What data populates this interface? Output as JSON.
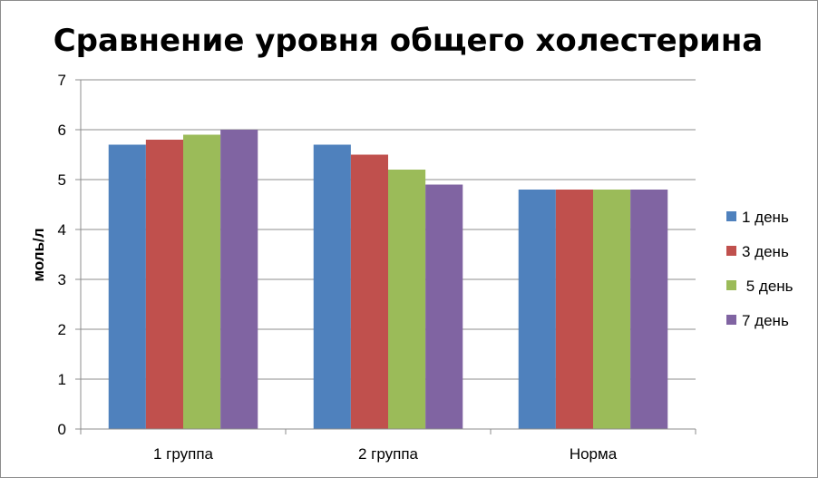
{
  "chart_data": {
    "type": "bar",
    "title": "Сравнение уровня общего холестерина",
    "xlabel": "",
    "ylabel": "моль/л",
    "ylim": [
      0,
      7
    ],
    "yticks": [
      0,
      1,
      2,
      3,
      4,
      5,
      6,
      7
    ],
    "grid": true,
    "legend_position": "right",
    "categories": [
      "1 группа",
      "2 группа",
      "Норма"
    ],
    "series": [
      {
        "name": "1 день",
        "color": "#4F81BD",
        "values": [
          5.7,
          5.7,
          4.8
        ]
      },
      {
        "name": "3 день",
        "color": "#C0504D",
        "values": [
          5.8,
          5.5,
          4.8
        ]
      },
      {
        "name": " 5 день",
        "color": "#9BBB59",
        "values": [
          5.9,
          5.2,
          4.8
        ]
      },
      {
        "name": "7 день",
        "color": "#8064A2",
        "values": [
          6.0,
          4.9,
          4.8
        ]
      }
    ]
  }
}
